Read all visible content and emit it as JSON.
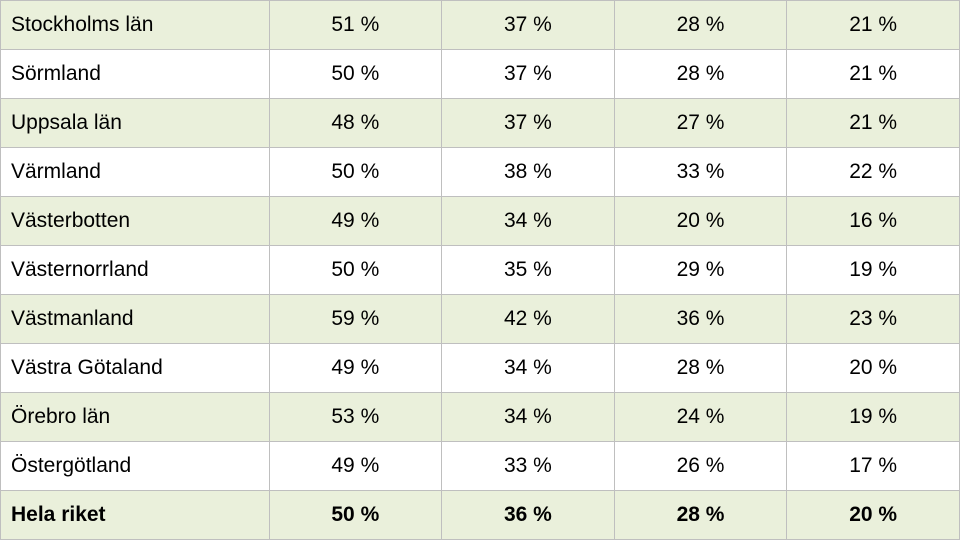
{
  "table": {
    "type": "table",
    "background_striped": "#eaf0db",
    "background_plain": "#ffffff",
    "border_color": "#bfbfbf",
    "text_color": "#000000",
    "font_size_pt": 16,
    "column_widths_pct": [
      28,
      18,
      18,
      18,
      18
    ],
    "column_alignment": [
      "left",
      "center",
      "center",
      "center",
      "center"
    ],
    "rows": [
      {
        "label": "Stockholms län",
        "values": [
          "51 %",
          "37 %",
          "28 %",
          "21 %"
        ],
        "striped": true,
        "bold": false
      },
      {
        "label": "Sörmland",
        "values": [
          "50 %",
          "37 %",
          "28 %",
          "21 %"
        ],
        "striped": false,
        "bold": false
      },
      {
        "label": "Uppsala län",
        "values": [
          "48 %",
          "37 %",
          "27 %",
          "21 %"
        ],
        "striped": true,
        "bold": false
      },
      {
        "label": "Värmland",
        "values": [
          "50 %",
          "38 %",
          "33 %",
          "22 %"
        ],
        "striped": false,
        "bold": false
      },
      {
        "label": "Västerbotten",
        "values": [
          "49 %",
          "34 %",
          "20 %",
          "16 %"
        ],
        "striped": true,
        "bold": false
      },
      {
        "label": "Västernorrland",
        "values": [
          "50 %",
          "35 %",
          "29 %",
          "19 %"
        ],
        "striped": false,
        "bold": false
      },
      {
        "label": "Västmanland",
        "values": [
          "59 %",
          "42 %",
          "36 %",
          "23 %"
        ],
        "striped": true,
        "bold": false
      },
      {
        "label": "Västra Götaland",
        "values": [
          "49 %",
          "34 %",
          "28 %",
          "20 %"
        ],
        "striped": false,
        "bold": false
      },
      {
        "label": "Örebro län",
        "values": [
          "53 %",
          "34 %",
          "24 %",
          "19 %"
        ],
        "striped": true,
        "bold": false
      },
      {
        "label": "Östergötland",
        "values": [
          "49 %",
          "33 %",
          "26 %",
          "17 %"
        ],
        "striped": false,
        "bold": false
      },
      {
        "label": "Hela riket",
        "values": [
          "50 %",
          "36 %",
          "28 %",
          "20 %"
        ],
        "striped": true,
        "bold": true
      }
    ]
  }
}
